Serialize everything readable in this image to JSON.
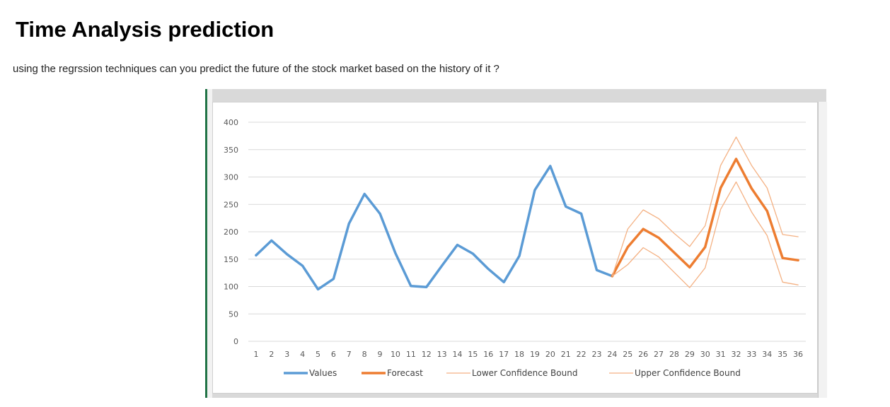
{
  "page": {
    "title": "Time Analysis prediction",
    "question": "using the regrssion techniques can you predict the future of the stock market based on the history of it ?"
  },
  "colors": {
    "values": "#5b9bd5",
    "forecast": "#ed7d31",
    "bound": "#f4b183",
    "gridline": "#d9d9d9",
    "sheet_accent": "#217346"
  },
  "chart_data": {
    "type": "line",
    "title": "",
    "xlabel": "",
    "ylabel": "",
    "ylim": [
      0,
      400
    ],
    "yticks": [
      0,
      50,
      100,
      150,
      200,
      250,
      300,
      350,
      400
    ],
    "grid": true,
    "legend_position": "bottom",
    "categories": [
      "1",
      "2",
      "3",
      "4",
      "5",
      "6",
      "7",
      "8",
      "9",
      "10",
      "11",
      "12",
      "13",
      "14",
      "15",
      "16",
      "17",
      "18",
      "19",
      "20",
      "21",
      "22",
      "23",
      "24",
      "25",
      "26",
      "27",
      "28",
      "29",
      "30",
      "31",
      "32",
      "33",
      "34",
      "35",
      "36"
    ],
    "series": [
      {
        "name": "Values",
        "color": "#5b9bd5",
        "x": [
          1,
          2,
          3,
          4,
          5,
          6,
          7,
          8,
          9,
          10,
          11,
          12,
          13,
          14,
          15,
          16,
          17,
          18,
          19,
          20,
          21,
          22,
          23,
          24
        ],
        "values": [
          157,
          184,
          159,
          138,
          95,
          114,
          215,
          269,
          233,
          161,
          101,
          99,
          138,
          176,
          160,
          132,
          108,
          156,
          276,
          320,
          246,
          233,
          130,
          119
        ]
      },
      {
        "name": "Forecast",
        "color": "#ed7d31",
        "x": [
          24,
          25,
          26,
          27,
          28,
          29,
          30,
          31,
          32,
          33,
          34,
          35,
          36
        ],
        "values": [
          119,
          172,
          205,
          189,
          162,
          135,
          172,
          280,
          333,
          279,
          238,
          152,
          148
        ]
      },
      {
        "name": "Lower Confidence Bound",
        "color": "#f4b183",
        "x": [
          24,
          25,
          26,
          27,
          28,
          29,
          30,
          31,
          32,
          33,
          34,
          35,
          36
        ],
        "values": [
          119,
          140,
          171,
          154,
          126,
          98,
          134,
          241,
          291,
          236,
          193,
          108,
          103
        ]
      },
      {
        "name": "Upper Confidence Bound",
        "color": "#f4b183",
        "x": [
          24,
          25,
          26,
          27,
          28,
          29,
          30,
          31,
          32,
          33,
          34,
          35,
          36
        ],
        "values": [
          119,
          205,
          240,
          224,
          197,
          173,
          211,
          321,
          373,
          321,
          280,
          195,
          191
        ]
      }
    ]
  }
}
